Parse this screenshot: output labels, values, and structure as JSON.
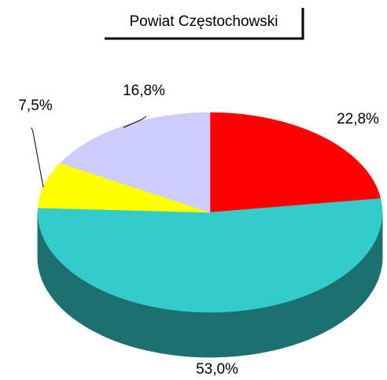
{
  "chart_data": {
    "type": "pie",
    "title": "Powiat Częstochowski",
    "values": [
      22.8,
      53.0,
      7.5,
      16.8
    ],
    "value_labels": [
      "22,8%",
      "53,0%",
      "7,5%",
      "16,8%"
    ],
    "colors": [
      "#ff0000",
      "#33cccc",
      "#ffff00",
      "#ccccff"
    ],
    "three_d": true
  }
}
